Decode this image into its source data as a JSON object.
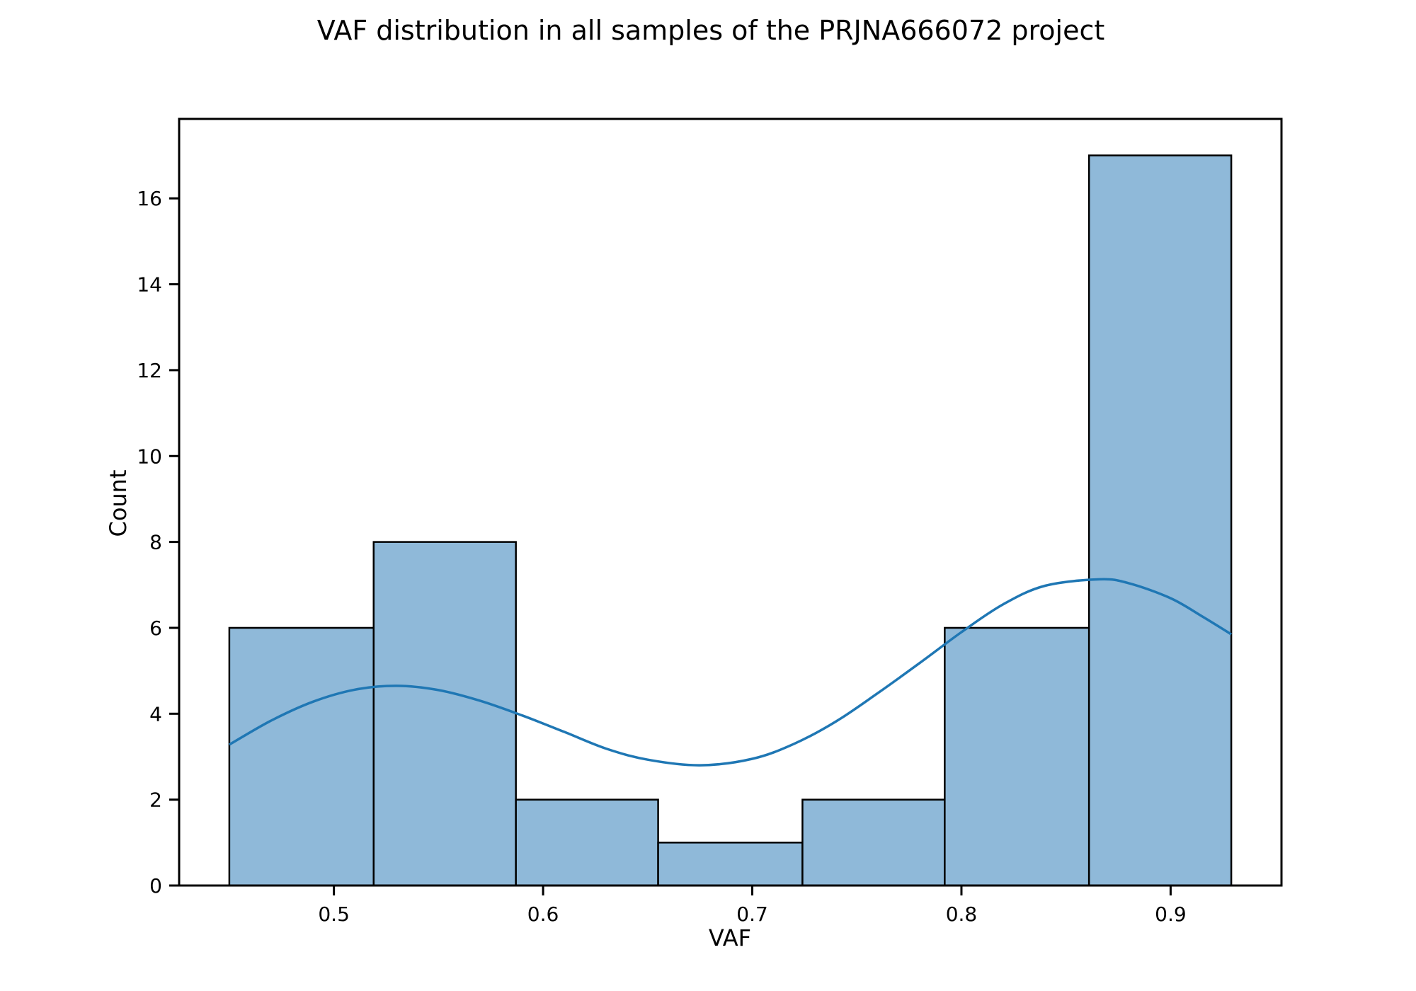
{
  "chart_data": {
    "type": "bar",
    "title": "VAF distribution in all samples of the PRJNA666072 project",
    "xlabel": "VAF",
    "ylabel": "Count",
    "xlim": [
      0.426,
      0.953
    ],
    "ylim": [
      0,
      17.85
    ],
    "x_ticks": [
      0.5,
      0.6,
      0.7,
      0.8,
      0.9
    ],
    "x_tick_labels": [
      "0.5",
      "0.6",
      "0.7",
      "0.8",
      "0.9"
    ],
    "y_ticks": [
      0,
      2,
      4,
      6,
      8,
      10,
      12,
      14,
      16
    ],
    "y_tick_labels": [
      "0",
      "2",
      "4",
      "6",
      "8",
      "10",
      "12",
      "14",
      "16"
    ],
    "bins": [
      {
        "x0": 0.45,
        "x1": 0.519,
        "count": 6
      },
      {
        "x0": 0.519,
        "x1": 0.587,
        "count": 8
      },
      {
        "x0": 0.587,
        "x1": 0.655,
        "count": 2
      },
      {
        "x0": 0.655,
        "x1": 0.724,
        "count": 1
      },
      {
        "x0": 0.724,
        "x1": 0.792,
        "count": 2
      },
      {
        "x0": 0.792,
        "x1": 0.861,
        "count": 6
      },
      {
        "x0": 0.861,
        "x1": 0.929,
        "count": 17
      }
    ],
    "kde": {
      "x": [
        0.45,
        0.47,
        0.49,
        0.51,
        0.53,
        0.55,
        0.57,
        0.59,
        0.61,
        0.63,
        0.65,
        0.675,
        0.7,
        0.72,
        0.74,
        0.76,
        0.78,
        0.8,
        0.82,
        0.84,
        0.866,
        0.88,
        0.9,
        0.915,
        0.929
      ],
      "y": [
        3.28,
        3.84,
        4.28,
        4.56,
        4.65,
        4.55,
        4.3,
        3.96,
        3.58,
        3.19,
        2.93,
        2.8,
        2.95,
        3.3,
        3.82,
        4.48,
        5.18,
        5.9,
        6.55,
        6.98,
        7.13,
        7.04,
        6.69,
        6.27,
        5.85
      ]
    },
    "grid": false,
    "legend": "none",
    "colors": {
      "bar_fill": "#8fb9d9",
      "bar_edge": "#000000",
      "kde_line": "#1f77b4"
    }
  }
}
